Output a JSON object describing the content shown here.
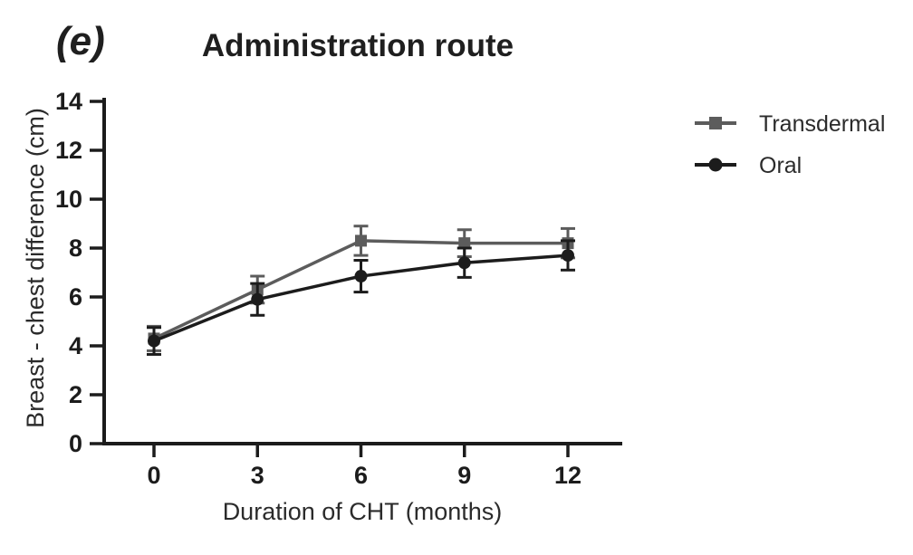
{
  "figure": {
    "panel_label": "(e)",
    "title": "Administration route"
  },
  "chart_data": {
    "type": "line",
    "title": "Administration route",
    "panel_label": "(e)",
    "xlabel": "Duration of CHT (months)",
    "ylabel": "Breast - chest difference (cm)",
    "x": [
      0,
      3,
      6,
      9,
      12
    ],
    "xticks": [
      0,
      3,
      6,
      9,
      12
    ],
    "yticks": [
      0,
      2,
      4,
      6,
      8,
      10,
      12,
      14
    ],
    "xlim": [
      0,
      12
    ],
    "ylim": [
      0,
      14
    ],
    "grid": false,
    "legend_position": "right-outside",
    "error_bars": true,
    "series": [
      {
        "name": "Transdermal",
        "marker": "square",
        "color": "#5c5c5c",
        "values": [
          4.3,
          6.3,
          8.3,
          8.2,
          8.2
        ],
        "errors": [
          0.5,
          0.55,
          0.6,
          0.55,
          0.6
        ]
      },
      {
        "name": "Oral",
        "marker": "circle",
        "color": "#1c1c1c",
        "values": [
          4.2,
          5.9,
          6.85,
          7.4,
          7.7
        ],
        "errors": [
          0.55,
          0.65,
          0.65,
          0.6,
          0.6
        ]
      }
    ],
    "axis_color": "#1c1c1c"
  }
}
